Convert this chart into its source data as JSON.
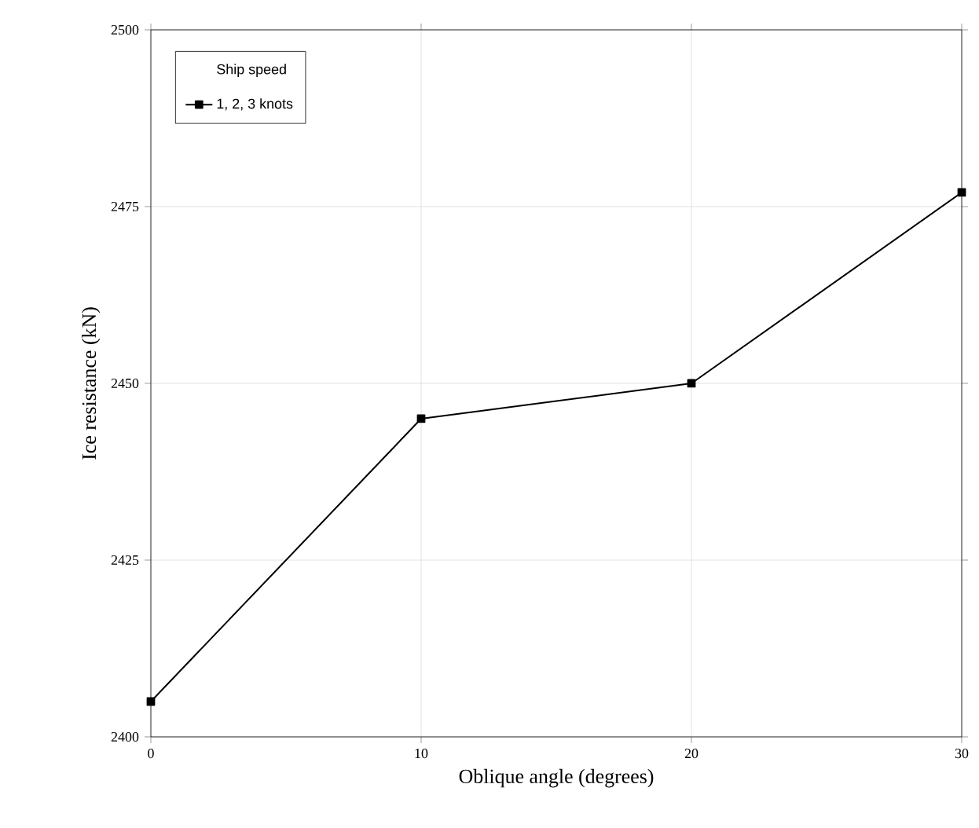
{
  "chart_data": {
    "type": "line",
    "xlabel": "Oblique angle (degrees)",
    "ylabel": "Ice resistance (kN)",
    "legend_title": "Ship speed",
    "x": [
      0,
      10,
      20,
      30
    ],
    "series": [
      {
        "name": "1, 2, 3 knots",
        "color": "#000000",
        "values": [
          2405,
          2445,
          2450,
          2477
        ]
      }
    ],
    "xlim": [
      0,
      30
    ],
    "xticks": [
      0,
      10,
      20,
      30
    ],
    "ylim": [
      2400,
      2500
    ],
    "yticks": [
      2400,
      2425,
      2450,
      2475,
      2500
    ],
    "grid": true,
    "legend": "top left",
    "marker": "square",
    "line_style": "solid"
  }
}
